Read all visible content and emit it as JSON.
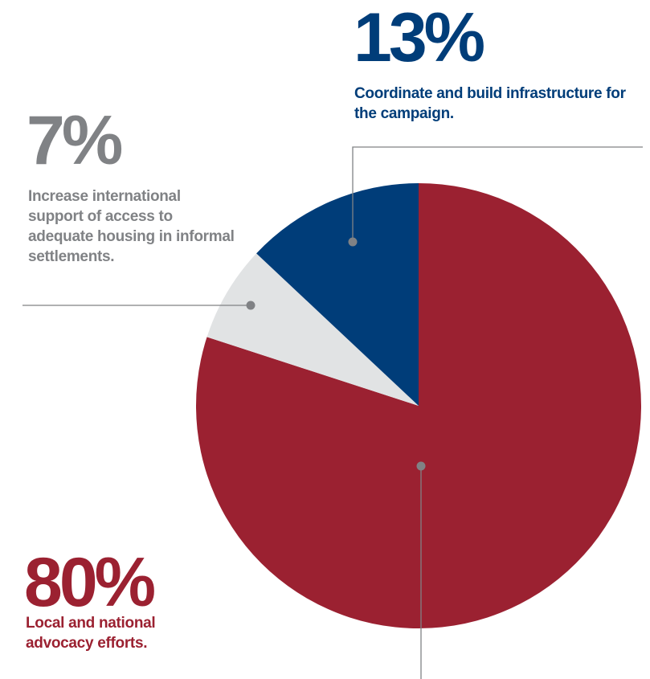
{
  "colors": {
    "local": "#9b2131",
    "coordinate": "#003d79",
    "international": "#e1e3e4",
    "international_text": "#808285",
    "leader": "#808285"
  },
  "chart_data": {
    "type": "pie",
    "slices": [
      {
        "key": "coordinate",
        "value": 13,
        "percent_label": "13%",
        "description": "Coordinate and build infrastructure for the campaign.",
        "color": "#003d79"
      },
      {
        "key": "local",
        "value": 80,
        "percent_label": "80%",
        "description": "Local and national advocacy efforts.",
        "color": "#9b2131"
      },
      {
        "key": "international",
        "value": 7,
        "percent_label": "7%",
        "description": "Increase international support of access to adequate housing in informal settlements.",
        "color": "#e1e3e4"
      }
    ]
  }
}
